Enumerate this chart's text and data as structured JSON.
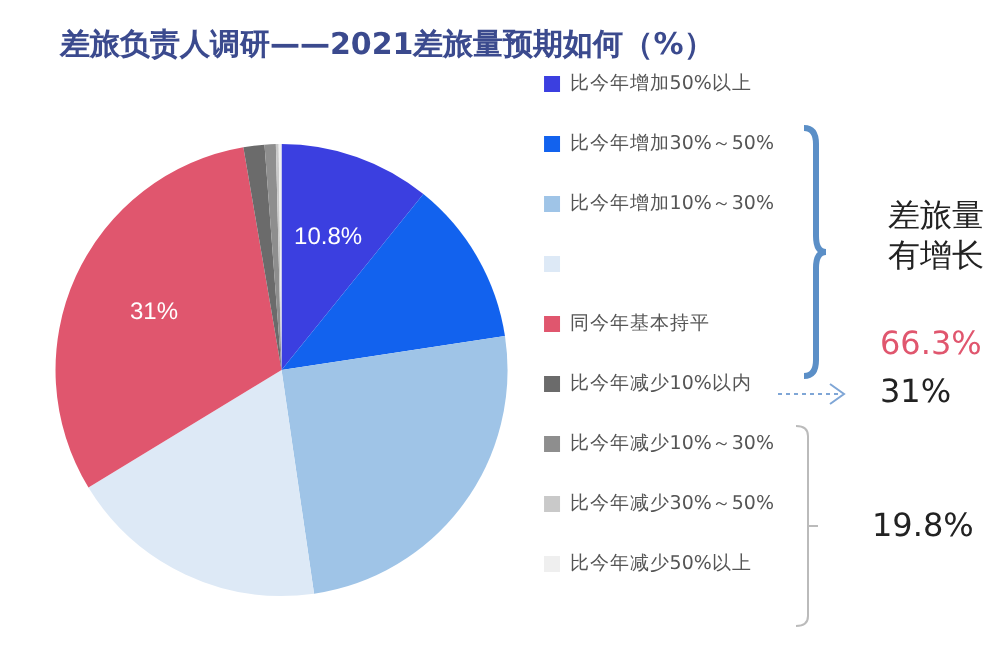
{
  "chart_data": {
    "type": "pie",
    "title": "差旅负责人调研——2021差旅量预期如何（%）",
    "categories": [
      "比今年增加50%以上",
      "比今年增加30%～50%",
      "比今年增加10%～30%",
      null,
      "同今年基本持平",
      "比今年减少10%以内",
      "比今年减少10%～30%",
      "比今年减少30%～50%",
      "比今年减少50%以上"
    ],
    "values": [
      10.8,
      11.8,
      25.1,
      18.6,
      31,
      1.5,
      0.8,
      0.2,
      0.2
    ],
    "colors": [
      "#3b3fe0",
      "#1262ee",
      "#9fc4e7",
      "#dde9f6",
      "#e0566e",
      "#6b6b6b",
      "#8e8e8e",
      "#c9c9c9",
      "#efefef"
    ],
    "value_labels": [
      "10.8%",
      null,
      null,
      null,
      "31%",
      null,
      null,
      null,
      null
    ],
    "legend": "right",
    "annotations": [
      "差旅量有增长",
      "66.3%",
      "31%",
      "19.8%"
    ]
  }
}
